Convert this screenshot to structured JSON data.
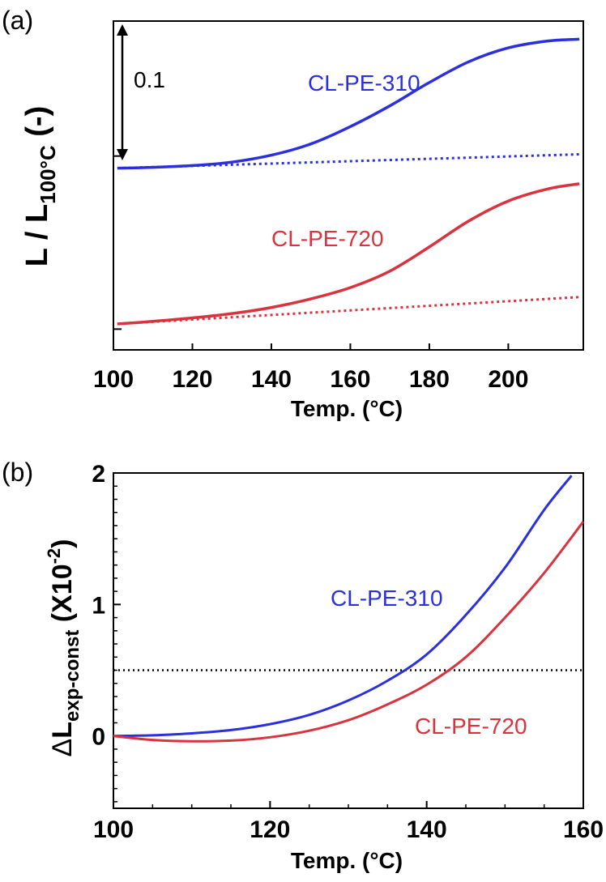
{
  "colors": {
    "blue": "#2b2fdc",
    "red": "#d8333f",
    "axis": "#000000"
  },
  "chart_data": [
    {
      "panel": "(a)",
      "type": "line",
      "xlabel": "Temp. (°C)",
      "ylabel": {
        "main": "L / L",
        "sub": "100°C",
        "tail": " (-)"
      },
      "xlim": [
        100,
        219
      ],
      "ylim": [
        -0.005,
        0.185
      ],
      "xticks": [
        100,
        120,
        140,
        160,
        180,
        200
      ],
      "scale_bar": {
        "label": "0.1",
        "value": 0.1
      },
      "series": [
        {
          "name": "CL-PE-310",
          "style": "solid",
          "color": "#2b2fdc",
          "x": [
            101,
            110,
            120,
            130,
            140,
            150,
            160,
            170,
            180,
            190,
            200,
            210,
            218
          ],
          "y": [
            0.1,
            0.1005,
            0.1015,
            0.1035,
            0.1075,
            0.114,
            0.124,
            0.136,
            0.1495,
            0.1615,
            0.1695,
            0.1735,
            0.1745
          ]
        },
        {
          "name": "",
          "style": "dotted",
          "color": "#2b2fdc",
          "x": [
            101,
            218
          ],
          "y": [
            0.1,
            0.108
          ]
        },
        {
          "name": "CL-PE-720",
          "style": "solid",
          "color": "#d8333f",
          "x": [
            101,
            110,
            120,
            130,
            140,
            150,
            160,
            170,
            180,
            190,
            200,
            210,
            218
          ],
          "y": [
            0.01,
            0.0115,
            0.0135,
            0.016,
            0.0195,
            0.0245,
            0.031,
            0.0405,
            0.0545,
            0.0695,
            0.081,
            0.088,
            0.091
          ]
        },
        {
          "name": "",
          "style": "dotted",
          "color": "#d8333f",
          "x": [
            101,
            218
          ],
          "y": [
            0.01,
            0.0255
          ]
        }
      ]
    },
    {
      "panel": "(b)",
      "type": "line",
      "xlabel": "Temp. (°C)",
      "ylabel": {
        "delta": "Δ",
        "main": "L",
        "sub": "exp-const",
        "tail": " (X10",
        "sup": "-2",
        "close": ")"
      },
      "xlim": [
        100,
        160
      ],
      "ylim": [
        -0.55,
        2.0
      ],
      "xticks": [
        100,
        120,
        140,
        160
      ],
      "yticks": [
        0,
        1,
        2
      ],
      "reference_line": {
        "y": 0.5,
        "style": "dotted"
      },
      "series": [
        {
          "name": "CL-PE-310",
          "color": "#2b2fdc",
          "x": [
            100,
            105,
            110,
            115,
            120,
            125,
            130,
            135,
            140,
            145,
            150,
            155,
            158.5
          ],
          "y": [
            0.0,
            0.005,
            0.02,
            0.045,
            0.09,
            0.16,
            0.27,
            0.42,
            0.62,
            0.92,
            1.28,
            1.72,
            1.98
          ]
        },
        {
          "name": "CL-PE-720",
          "color": "#d8333f",
          "x": [
            100,
            105,
            110,
            115,
            120,
            125,
            130,
            135,
            140,
            145,
            150,
            155,
            160
          ],
          "y": [
            0.0,
            -0.03,
            -0.04,
            -0.035,
            -0.01,
            0.04,
            0.12,
            0.24,
            0.39,
            0.6,
            0.9,
            1.24,
            1.63
          ]
        }
      ]
    }
  ]
}
